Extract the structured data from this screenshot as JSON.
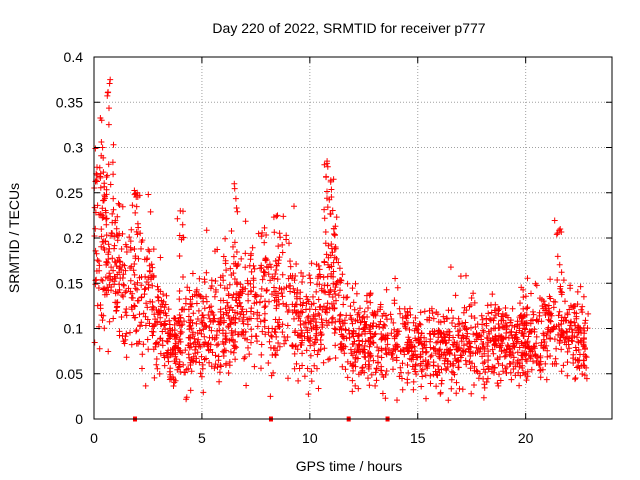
{
  "chart_data": {
    "type": "scatter",
    "title": "Day 220 of 2022, SRMTID for receiver p777",
    "xlabel": "GPS time / hours",
    "ylabel": "SRMTID / TECUs",
    "xlim": [
      0,
      24
    ],
    "ylim": [
      0,
      0.4
    ],
    "x_ticks": [
      0,
      5,
      10,
      15,
      20
    ],
    "x_tick_labels": [
      "0",
      "5",
      "10",
      "15",
      "20"
    ],
    "y_ticks": [
      0,
      0.05,
      0.1,
      0.15,
      0.2,
      0.25,
      0.3,
      0.35,
      0.4
    ],
    "y_tick_labels": [
      "0",
      "0.05",
      "0.1",
      "0.15",
      "0.2",
      "0.25",
      "0.3",
      "0.35",
      "0.4"
    ],
    "grid": true,
    "marker": "+",
    "series_color": "#ff0000",
    "data_end_hours": 22.9,
    "trend_profile": {
      "hours": [
        0,
        0.5,
        1,
        1.5,
        2,
        3,
        3.5,
        4,
        5,
        6,
        7,
        8,
        9,
        10,
        10.5,
        11,
        11.5,
        12,
        13,
        14,
        15,
        16,
        17,
        18,
        19,
        20,
        21,
        21.5,
        22,
        22.9
      ],
      "median_tecu": [
        0.2,
        0.19,
        0.17,
        0.155,
        0.145,
        0.11,
        0.08,
        0.085,
        0.1,
        0.11,
        0.12,
        0.13,
        0.125,
        0.1,
        0.12,
        0.16,
        0.1,
        0.085,
        0.085,
        0.085,
        0.08,
        0.075,
        0.085,
        0.085,
        0.08,
        0.09,
        0.1,
        0.11,
        0.09,
        0.08
      ]
    },
    "peaks": [
      {
        "x": 0.4,
        "y": 0.3
      },
      {
        "x": 0.75,
        "y": 0.375
      },
      {
        "x": 2.0,
        "y": 0.25
      },
      {
        "x": 4.0,
        "y": 0.23
      },
      {
        "x": 6.5,
        "y": 0.26
      },
      {
        "x": 8.5,
        "y": 0.225
      },
      {
        "x": 10.8,
        "y": 0.285
      },
      {
        "x": 11.1,
        "y": 0.265
      },
      {
        "x": 21.6,
        "y": 0.21
      }
    ],
    "zero_markers_x": [
      1.9,
      8.2,
      11.8,
      13.6
    ]
  }
}
